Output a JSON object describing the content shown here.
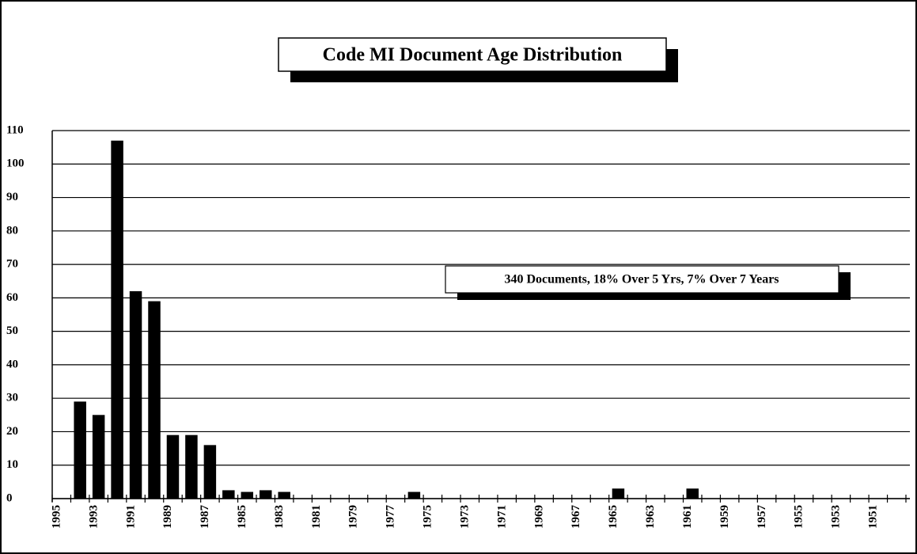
{
  "chart_data": {
    "type": "bar",
    "title": "Code MI Document Age Distribution",
    "annotation": "340 Documents, 18% Over 5 Yrs, 7% Over 7 Years",
    "categories": [
      "1995",
      null,
      "1993",
      null,
      "1991",
      null,
      "1989",
      null,
      "1987",
      null,
      "1985",
      null,
      "1983",
      null,
      "1981",
      null,
      "1979",
      null,
      "1977",
      null,
      "1975",
      null,
      "1973",
      null,
      "1971",
      null,
      "1969",
      null,
      "1967",
      null,
      "1965",
      null,
      "1963",
      null,
      "1961",
      null,
      "1959",
      null,
      "1957",
      null,
      "1955",
      null,
      "1953",
      null,
      "1951",
      null
    ],
    "values": [
      0,
      29,
      25,
      107,
      62,
      59,
      19,
      19,
      16,
      2.5,
      2,
      2.5,
      2,
      0,
      0,
      0,
      0,
      0,
      0,
      2,
      0,
      0,
      0,
      0,
      0,
      0,
      0,
      0,
      0,
      0,
      3,
      0,
      0,
      0,
      3,
      0,
      0,
      0,
      0,
      0,
      0,
      0,
      0,
      0,
      0,
      0
    ],
    "color": "#000000",
    "ylim": [
      0,
      110
    ],
    "yticks": [
      0,
      10,
      20,
      30,
      40,
      50,
      60,
      70,
      80,
      90,
      100,
      110
    ],
    "grid": true
  }
}
